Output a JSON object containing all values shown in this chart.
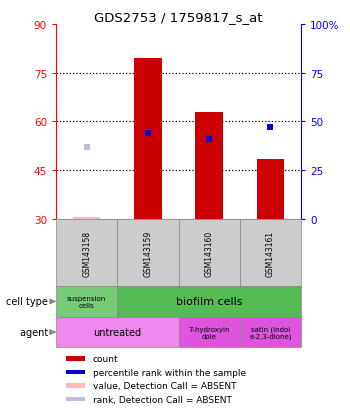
{
  "title": "GDS2753 / 1759817_s_at",
  "samples": [
    "GSM143158",
    "GSM143159",
    "GSM143160",
    "GSM143161"
  ],
  "bar_values": [
    30.8,
    79.5,
    63.0,
    48.5
  ],
  "bar_absent": [
    true,
    false,
    false,
    false
  ],
  "percentile_values": [
    37.0,
    44.0,
    41.0,
    47.0
  ],
  "percentile_absent": [
    true,
    false,
    false,
    false
  ],
  "ylim_left": [
    30,
    90
  ],
  "yticks_left": [
    30,
    45,
    60,
    75,
    90
  ],
  "ylim_right": [
    0,
    100
  ],
  "yticks_right": [
    0,
    25,
    50,
    75,
    100
  ],
  "bar_bottom": 30,
  "cell_type_colors": [
    "#77cc77",
    "#55bb55"
  ],
  "agent_colors_untreated": "#ee88ee",
  "agent_colors_other": "#dd55dd",
  "legend_items": [
    {
      "color": "#cc0000",
      "label": "count"
    },
    {
      "color": "#0000cc",
      "label": "percentile rank within the sample"
    },
    {
      "color": "#ffbbbb",
      "label": "value, Detection Call = ABSENT"
    },
    {
      "color": "#bbbbee",
      "label": "rank, Detection Call = ABSENT"
    }
  ]
}
